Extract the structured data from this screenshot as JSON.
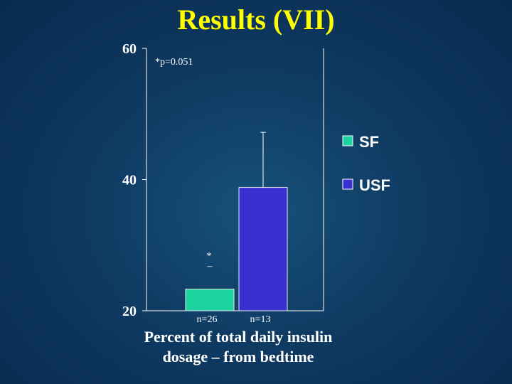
{
  "slide": {
    "title": "Results (VII)",
    "caption": "Percent of total daily insulin dosage – from bedtime"
  },
  "chart_data": {
    "type": "bar",
    "title": "Results (VII)",
    "xlabel": "Percent of total daily insulin dosage – from bedtime",
    "ylabel": "",
    "ylim": [
      20,
      60
    ],
    "yticks": [
      "20",
      "40",
      "60"
    ],
    "categories": [
      "SF",
      "USF"
    ],
    "values": [
      23.3,
      38.8
    ],
    "error_upper": [
      null,
      47.2
    ],
    "colors": [
      "#1ed3a2",
      "#3a2fd0"
    ],
    "bar_labels": [
      "n=26",
      "n=13"
    ],
    "legend": [
      "SF",
      "USF"
    ],
    "legend_position": "right",
    "annotations": {
      "pvalue": "*p=0.051",
      "star": "*",
      "dash": "–"
    }
  }
}
